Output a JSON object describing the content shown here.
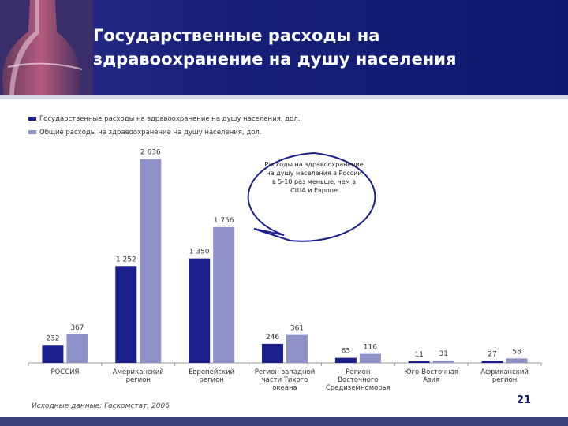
{
  "header": {
    "title_line1": "Государственные расходы на",
    "title_line2": "здравоохранение на душу населения"
  },
  "callout": {
    "text": "Расходы на здравоохранение на душу населения в России в 5-10 раз меньше, чем в США и Европе"
  },
  "footer": {
    "source": "Исходные данные: Госкомстат, 2006",
    "page_number": "21"
  },
  "colors": {
    "header_bg": "#0f1a6e",
    "series_gov": "#1a1f8c",
    "series_total": "#8f92c8"
  },
  "chart_data": {
    "type": "bar",
    "categories": [
      "РОССИЯ",
      "Американский регион",
      "Европейский регион",
      "Регион западной части Тихого океана",
      "Регион Восточного Средиземноморья",
      "Юго-Восточная Азия",
      "Африканский регион"
    ],
    "series": [
      {
        "name": "Государственные расходы на здравоохранение на душу населения, дол.",
        "values": [
          232,
          1252,
          1350,
          246,
          65,
          11,
          27
        ],
        "labels": [
          "232",
          "1 252",
          "1 350",
          "246",
          "65",
          "11",
          "27"
        ]
      },
      {
        "name": "Общие расходы на здравоохранение на душу населения, дол.",
        "values": [
          367,
          2636,
          1756,
          361,
          116,
          31,
          58
        ],
        "labels": [
          "367",
          "2 636",
          "1 756",
          "361",
          "116",
          "31",
          "58"
        ]
      }
    ],
    "ylim": [
      0,
      2800
    ],
    "grid": false,
    "legend_position": "top-left"
  }
}
